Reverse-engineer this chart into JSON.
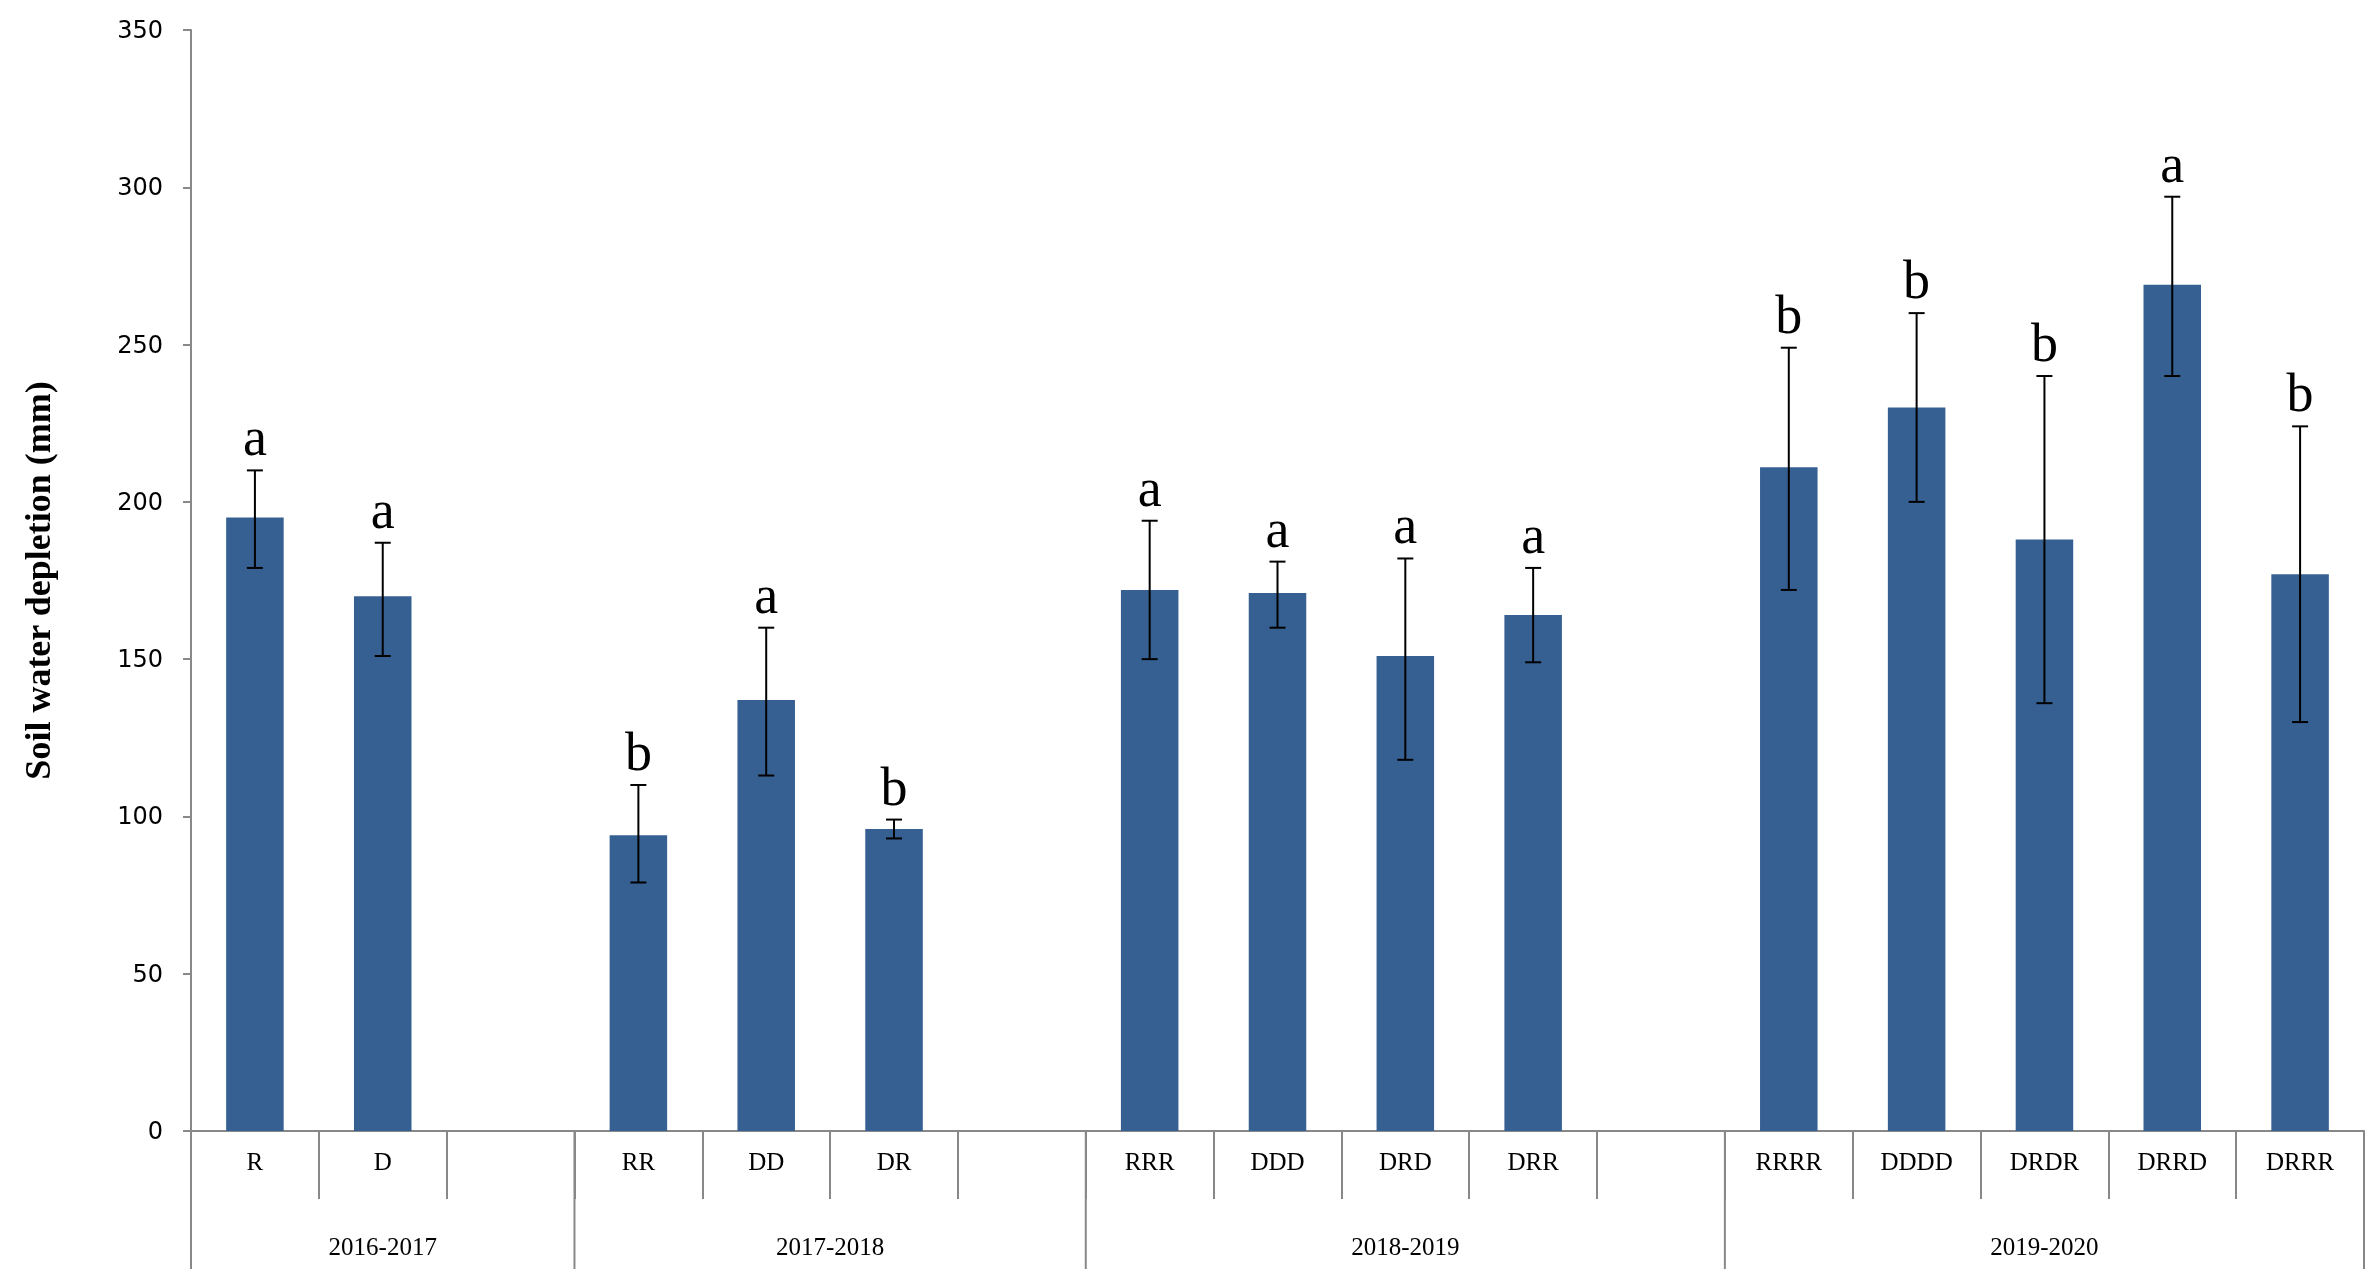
{
  "chart_data": {
    "type": "bar",
    "ylabel": "Soil water depletion (mm)",
    "categories": [
      "R",
      "D",
      null,
      "RR",
      "DD",
      "DR",
      null,
      "RRR",
      "DDD",
      "DRD",
      "DRR",
      null,
      "RRRR",
      "DDDD",
      "DRDR",
      "DRRD",
      "DRRR"
    ],
    "values": [
      195,
      170,
      null,
      94,
      137,
      96,
      null,
      172,
      171,
      151,
      164,
      null,
      211,
      230,
      188,
      269,
      177
    ],
    "errors": [
      [
        179,
        210
      ],
      [
        151,
        187
      ],
      null,
      [
        79,
        110
      ],
      [
        113,
        160
      ],
      [
        93,
        99
      ],
      null,
      [
        150,
        194
      ],
      [
        160,
        181
      ],
      [
        118,
        182
      ],
      [
        149,
        179
      ],
      null,
      [
        172,
        249
      ],
      [
        200,
        260
      ],
      [
        136,
        240
      ],
      [
        240,
        297
      ],
      [
        130,
        224
      ]
    ],
    "color": "#366092",
    "ylim": [
      0,
      350
    ],
    "yticks": [
      0,
      50,
      100,
      150,
      200,
      250,
      300,
      350
    ],
    "grid": false,
    "annotations": [
      {
        "text": "a",
        "x": "R",
        "y": 210
      },
      {
        "text": "a",
        "x": "D",
        "y": 187
      },
      {
        "text": "b",
        "x": "RR",
        "y": 110
      },
      {
        "text": "a",
        "x": "DD",
        "y": 160
      },
      {
        "text": "b",
        "x": "DR",
        "y": 99
      },
      {
        "text": "a",
        "x": "RRR",
        "y": 194
      },
      {
        "text": "a",
        "x": "DDD",
        "y": 181
      },
      {
        "text": "a",
        "x": "DRD",
        "y": 182
      },
      {
        "text": "a",
        "x": "DRR",
        "y": 179
      },
      {
        "text": "b",
        "x": "RRRR",
        "y": 249
      },
      {
        "text": "b",
        "x": "DDDD",
        "y": 260
      },
      {
        "text": "b",
        "x": "DRDR",
        "y": 240
      },
      {
        "text": "a",
        "x": "DRRD",
        "y": 297
      },
      {
        "text": "b",
        "x": "DRRR",
        "y": 224
      },
      "2016-2017",
      "2017-2018",
      "2018-2019",
      "2019-2020"
    ]
  }
}
